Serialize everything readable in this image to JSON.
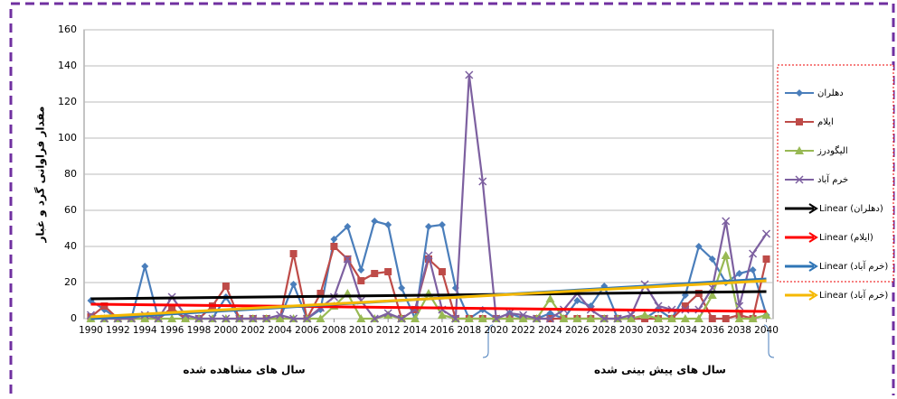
{
  "chart_data": {
    "type": "line",
    "y_label": "مقدار فراوانی گرد و غبار",
    "x_group_labels": [
      "سال های مشاهده شده",
      "سال های پیش بینی شده"
    ],
    "x": [
      1990,
      1991,
      1992,
      1993,
      1994,
      1995,
      1996,
      1997,
      1998,
      1999,
      2000,
      2001,
      2002,
      2003,
      2004,
      2005,
      2006,
      2007,
      2008,
      2009,
      2010,
      2011,
      2012,
      2013,
      2014,
      2015,
      2016,
      2017,
      2018,
      2019,
      2020,
      2021,
      2022,
      2023,
      2024,
      2025,
      2026,
      2027,
      2028,
      2029,
      2030,
      2031,
      2032,
      2033,
      2034,
      2035,
      2036,
      2037,
      2038,
      2039,
      2040
    ],
    "xlim": [
      1989.5,
      2040.5
    ],
    "xticks": [
      1990,
      1992,
      1994,
      1996,
      1998,
      2000,
      2002,
      2004,
      2006,
      2008,
      2010,
      2012,
      2014,
      2016,
      2018,
      2020,
      2022,
      2024,
      2026,
      2028,
      2030,
      2032,
      2034,
      2036,
      2038,
      2040
    ],
    "ylim": [
      0,
      160
    ],
    "yticks": [
      0,
      20,
      40,
      60,
      80,
      100,
      120,
      140,
      160
    ],
    "grid": true,
    "series": [
      {
        "name": "دهلران",
        "color": "#4a7ebb",
        "marker": "diamond",
        "values": [
          10,
          5,
          0,
          0,
          29,
          0,
          5,
          0,
          0,
          0,
          12,
          0,
          0,
          0,
          0,
          19,
          0,
          5,
          44,
          51,
          27,
          54,
          52,
          17,
          0,
          51,
          52,
          17,
          0,
          5,
          0,
          3,
          0,
          0,
          3,
          0,
          10,
          7,
          18,
          0,
          0,
          0,
          5,
          0,
          13,
          40,
          33,
          20,
          25,
          27,
          2
        ]
      },
      {
        "name": "ایلام",
        "color": "#be4b48",
        "marker": "square",
        "values": [
          1,
          7,
          0,
          0,
          0,
          0,
          6,
          0,
          0,
          7,
          18,
          0,
          0,
          0,
          0,
          36,
          0,
          14,
          40,
          33,
          21,
          25,
          26,
          0,
          5,
          33,
          26,
          0,
          0,
          0,
          0,
          0,
          0,
          0,
          0,
          0,
          0,
          0,
          0,
          0,
          0,
          0,
          0,
          0,
          7,
          14,
          0,
          0,
          2,
          0,
          33
        ]
      },
      {
        "name": "الیگودرز",
        "color": "#98b954",
        "marker": "triangle",
        "values": [
          0,
          0,
          0,
          0,
          0,
          0,
          0,
          0,
          0,
          0,
          0,
          0,
          0,
          0,
          0,
          0,
          0,
          0,
          7,
          14,
          0,
          0,
          2,
          0,
          0,
          14,
          2,
          0,
          0,
          0,
          0,
          0,
          0,
          0,
          11,
          0,
          0,
          0,
          0,
          0,
          0,
          2,
          0,
          0,
          0,
          0,
          13,
          35,
          0,
          0,
          2
        ]
      },
      {
        "name": "خرم آباد",
        "color": "#7d60a0",
        "marker": "x",
        "values": [
          2,
          0,
          0,
          0,
          2,
          0,
          12,
          2,
          0,
          0,
          0,
          0,
          0,
          0,
          2,
          0,
          0,
          6,
          12,
          33,
          10,
          0,
          3,
          0,
          5,
          35,
          5,
          0,
          135,
          76,
          0,
          3,
          2,
          0,
          0,
          5,
          14,
          5,
          0,
          0,
          2,
          19,
          7,
          5,
          5,
          5,
          17,
          54,
          7,
          36,
          47
        ]
      }
    ],
    "trendlines": [
      {
        "name": "Linear (دهلران)",
        "color": "#000000",
        "x": [
          1990,
          2040
        ],
        "values": [
          11,
          15
        ]
      },
      {
        "name": "Linear (ایلام)",
        "color": "#ff0000",
        "x": [
          1990,
          2040
        ],
        "values": [
          8,
          4
        ]
      },
      {
        "name": "Linear (خرم آباد)",
        "color": "#2e75b6",
        "x": [
          1990,
          2040
        ],
        "values": [
          0,
          22
        ]
      },
      {
        "name": "Linear (خرم آباد)",
        "color": "#f5b800",
        "x": [
          1990,
          2040
        ],
        "values": [
          1,
          21
        ]
      }
    ]
  }
}
